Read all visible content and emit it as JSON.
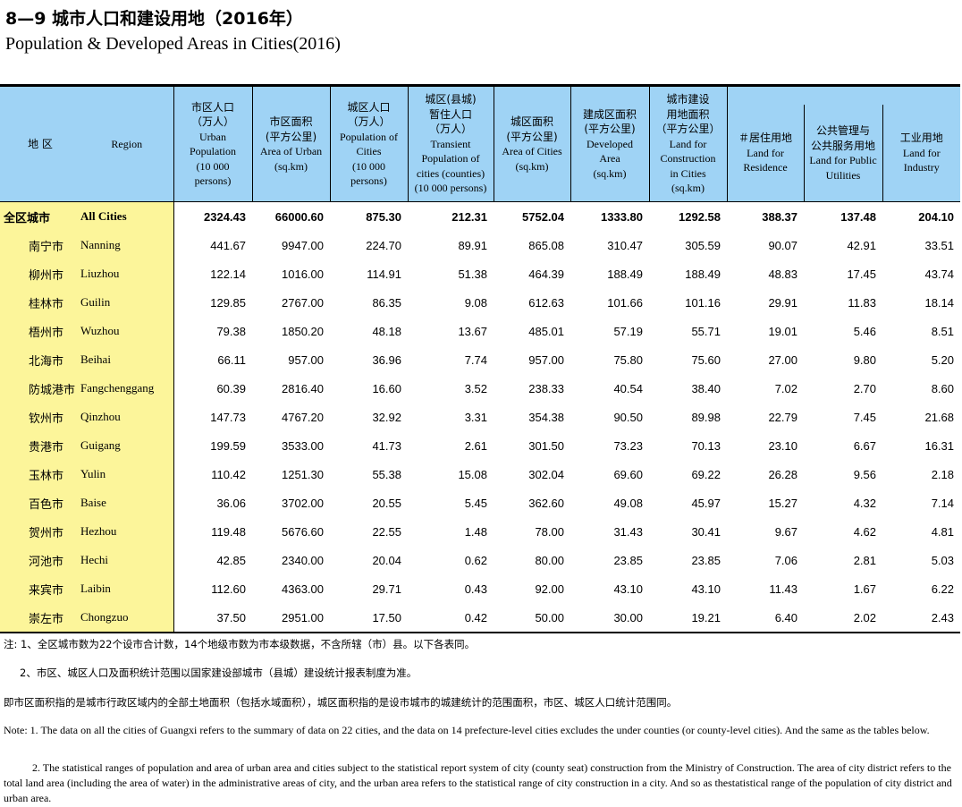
{
  "title_cn": "8—9  城市人口和建设用地（2016年）",
  "title_en": "Population & Developed Areas in Cities(2016)",
  "headers": {
    "region_cn": "地 区",
    "region_en": "Region",
    "cols": [
      {
        "cn": "市区人口\n（万人）",
        "en": "Urban\nPopulation\n(10 000\npersons)"
      },
      {
        "cn": "市区面积\n(平方公里)",
        "en": "Area of Urban\n(sq.km)"
      },
      {
        "cn": "城区人口\n（万人）",
        "en": "Population of\nCities\n(10 000\npersons)"
      },
      {
        "cn": "城区(县城)\n暂住人口\n（万人）",
        "en": "Transient\nPopulation of\ncities (counties)\n(10 000 persons)"
      },
      {
        "cn": "城区面积\n(平方公里)",
        "en": "Area of Cities\n(sq.km)"
      },
      {
        "cn": "建成区面积\n(平方公里)",
        "en": "Developed\nArea\n(sq.km)"
      },
      {
        "cn": "城市建设\n用地面积\n（平方公里）",
        "en": "Land for\nConstruction\nin Cities\n(sq.km)"
      },
      {
        "cn": "＃居住用地",
        "en": "Land for\nResidence"
      },
      {
        "cn": "公共管理与\n公共服务用地",
        "en": "Land for Public\nUtilities"
      },
      {
        "cn": "工业用地",
        "en": "Land for\nIndustry"
      }
    ]
  },
  "rows": [
    {
      "cn": "全区城市",
      "en": "All Cities",
      "total": true,
      "v": [
        "2324.43",
        "66000.60",
        "875.30",
        "212.31",
        "5752.04",
        "1333.80",
        "1292.58",
        "388.37",
        "137.48",
        "204.10"
      ]
    },
    {
      "cn": "南宁市",
      "en": "Nanning",
      "v": [
        "441.67",
        "9947.00",
        "224.70",
        "89.91",
        "865.08",
        "310.47",
        "305.59",
        "90.07",
        "42.91",
        "33.51"
      ]
    },
    {
      "cn": "柳州市",
      "en": "Liuzhou",
      "v": [
        "122.14",
        "1016.00",
        "114.91",
        "51.38",
        "464.39",
        "188.49",
        "188.49",
        "48.83",
        "17.45",
        "43.74"
      ]
    },
    {
      "cn": "桂林市",
      "en": "Guilin",
      "v": [
        "129.85",
        "2767.00",
        "86.35",
        "9.08",
        "612.63",
        "101.66",
        "101.16",
        "29.91",
        "11.83",
        "18.14"
      ]
    },
    {
      "cn": "梧州市",
      "en": "Wuzhou",
      "v": [
        "79.38",
        "1850.20",
        "48.18",
        "13.67",
        "485.01",
        "57.19",
        "55.71",
        "19.01",
        "5.46",
        "8.51"
      ]
    },
    {
      "cn": "北海市",
      "en": "Beihai",
      "v": [
        "66.11",
        "957.00",
        "36.96",
        "7.74",
        "957.00",
        "75.80",
        "75.60",
        "27.00",
        "9.80",
        "5.20"
      ]
    },
    {
      "cn": "防城港市",
      "en": "Fangchenggang",
      "v": [
        "60.39",
        "2816.40",
        "16.60",
        "3.52",
        "238.33",
        "40.54",
        "38.40",
        "7.02",
        "2.70",
        "8.60"
      ]
    },
    {
      "cn": "钦州市",
      "en": "Qinzhou",
      "v": [
        "147.73",
        "4767.20",
        "32.92",
        "3.31",
        "354.38",
        "90.50",
        "89.98",
        "22.79",
        "7.45",
        "21.68"
      ]
    },
    {
      "cn": "贵港市",
      "en": "Guigang",
      "v": [
        "199.59",
        "3533.00",
        "41.73",
        "2.61",
        "301.50",
        "73.23",
        "70.13",
        "23.10",
        "6.67",
        "16.31"
      ]
    },
    {
      "cn": "玉林市",
      "en": "Yulin",
      "v": [
        "110.42",
        "1251.30",
        "55.38",
        "15.08",
        "302.04",
        "69.60",
        "69.22",
        "26.28",
        "9.56",
        "2.18"
      ]
    },
    {
      "cn": "百色市",
      "en": "Baise",
      "v": [
        "36.06",
        "3702.00",
        "20.55",
        "5.45",
        "362.60",
        "49.08",
        "45.97",
        "15.27",
        "4.32",
        "7.14"
      ]
    },
    {
      "cn": "贺州市",
      "en": "Hezhou",
      "v": [
        "119.48",
        "5676.60",
        "22.55",
        "1.48",
        "78.00",
        "31.43",
        "30.41",
        "9.67",
        "4.62",
        "4.81"
      ]
    },
    {
      "cn": "河池市",
      "en": "Hechi",
      "v": [
        "42.85",
        "2340.00",
        "20.04",
        "0.62",
        "80.00",
        "23.85",
        "23.85",
        "7.06",
        "2.81",
        "5.03"
      ]
    },
    {
      "cn": "来宾市",
      "en": "Laibin",
      "v": [
        "112.60",
        "4363.00",
        "29.71",
        "0.43",
        "92.00",
        "43.10",
        "43.10",
        "11.43",
        "1.67",
        "6.22"
      ]
    },
    {
      "cn": "崇左市",
      "en": "Chongzuo",
      "v": [
        "37.50",
        "2951.00",
        "17.50",
        "0.42",
        "50.00",
        "30.00",
        "19.21",
        "6.40",
        "2.02",
        "2.43"
      ]
    }
  ],
  "notes": {
    "cn1": "注: 1、全区城市数为22个设市合计数，14个地级市数为市本级数据，不含所辖（市）县。以下各表同。",
    "cn2": "2、市区、城区人口及面积统计范围以国家建设部城市（县城）建设统计报表制度为准。",
    "cn3": "即市区面积指的是城市行政区域内的全部土地面积（包括水域面积），城区面积指的是设市城市的城建统计的范围面积，市区、城区人口统计范围同。",
    "en1": "Note:  1. The data on all the cities of Guangxi refers to the summary of data on 22 cities, and the data on 14 prefecture-level cities excludes the under counties (or county-level cities). And the same as the tables below.",
    "en2": "2. The statistical ranges of population and area of urban area and cities subject to the statistical report system of city (county seat) construction from the Ministry of Construction. The area of city district refers to the total land area (including the area of water) in the administrative areas of city, and the urban area refers to the statistical range of city construction in a city. And so as thestatistical range of the population of city district and urban area."
  }
}
